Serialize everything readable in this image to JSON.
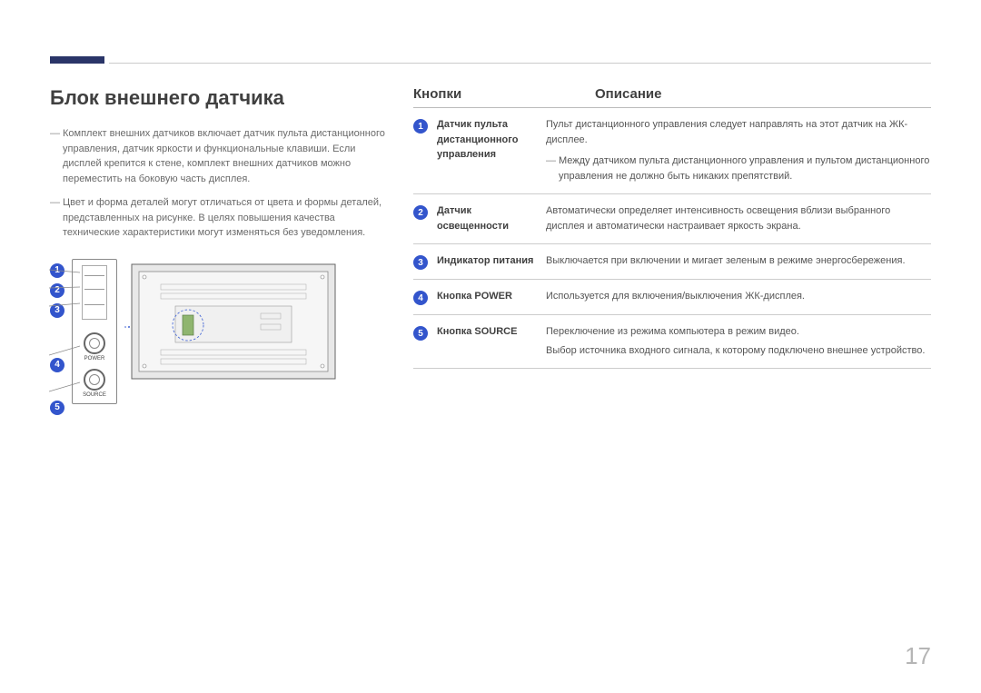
{
  "page_number": "17",
  "accent_color": "#2a3568",
  "badge_color": "#3355cc",
  "section_title": "Блок внешнего датчика",
  "notes": [
    "Комплект внешних датчиков включает датчик пульта дистанционного управления, датчик яркости и функциональные клавиши. Если дисплей крепится к стене, комплект внешних датчиков можно переместить на боковую часть дисплея.",
    "Цвет и форма деталей могут отличаться от цвета и формы деталей, представленных на рисунке. В целях повышения качества технические характеристики могут изменяться без уведомления."
  ],
  "header_buttons": "Кнопки",
  "header_desc": "Описание",
  "diagram_labels": {
    "power": "POWER",
    "source": "SOURCE"
  },
  "rows": [
    {
      "num": "1",
      "label": "Датчик пульта дистанционного управления",
      "desc": "Пульт дистанционного управления следует направлять на этот датчик на ЖК-дисплее.",
      "subnote": "Между датчиком пульта дистанционного управления и пультом дистанционного управления не должно быть никаких препятствий."
    },
    {
      "num": "2",
      "label": "Датчик освещенности",
      "desc": "Автоматически определяет интенсивность освещения вблизи выбранного дисплея и автоматически настраивает яркость экрана."
    },
    {
      "num": "3",
      "label": "Индикатор питания",
      "desc": "Выключается при включении и мигает зеленым в режиме энергосбережения."
    },
    {
      "num": "4",
      "label": "Кнопка POWER",
      "desc": "Используется для включения/выключения ЖК-дисплея."
    },
    {
      "num": "5",
      "label": "Кнопка SOURCE",
      "desc": "Переключение из режима компьютера в режим видео.\nВыбор источника входного сигнала, к которому подключено внешнее устройство."
    }
  ]
}
